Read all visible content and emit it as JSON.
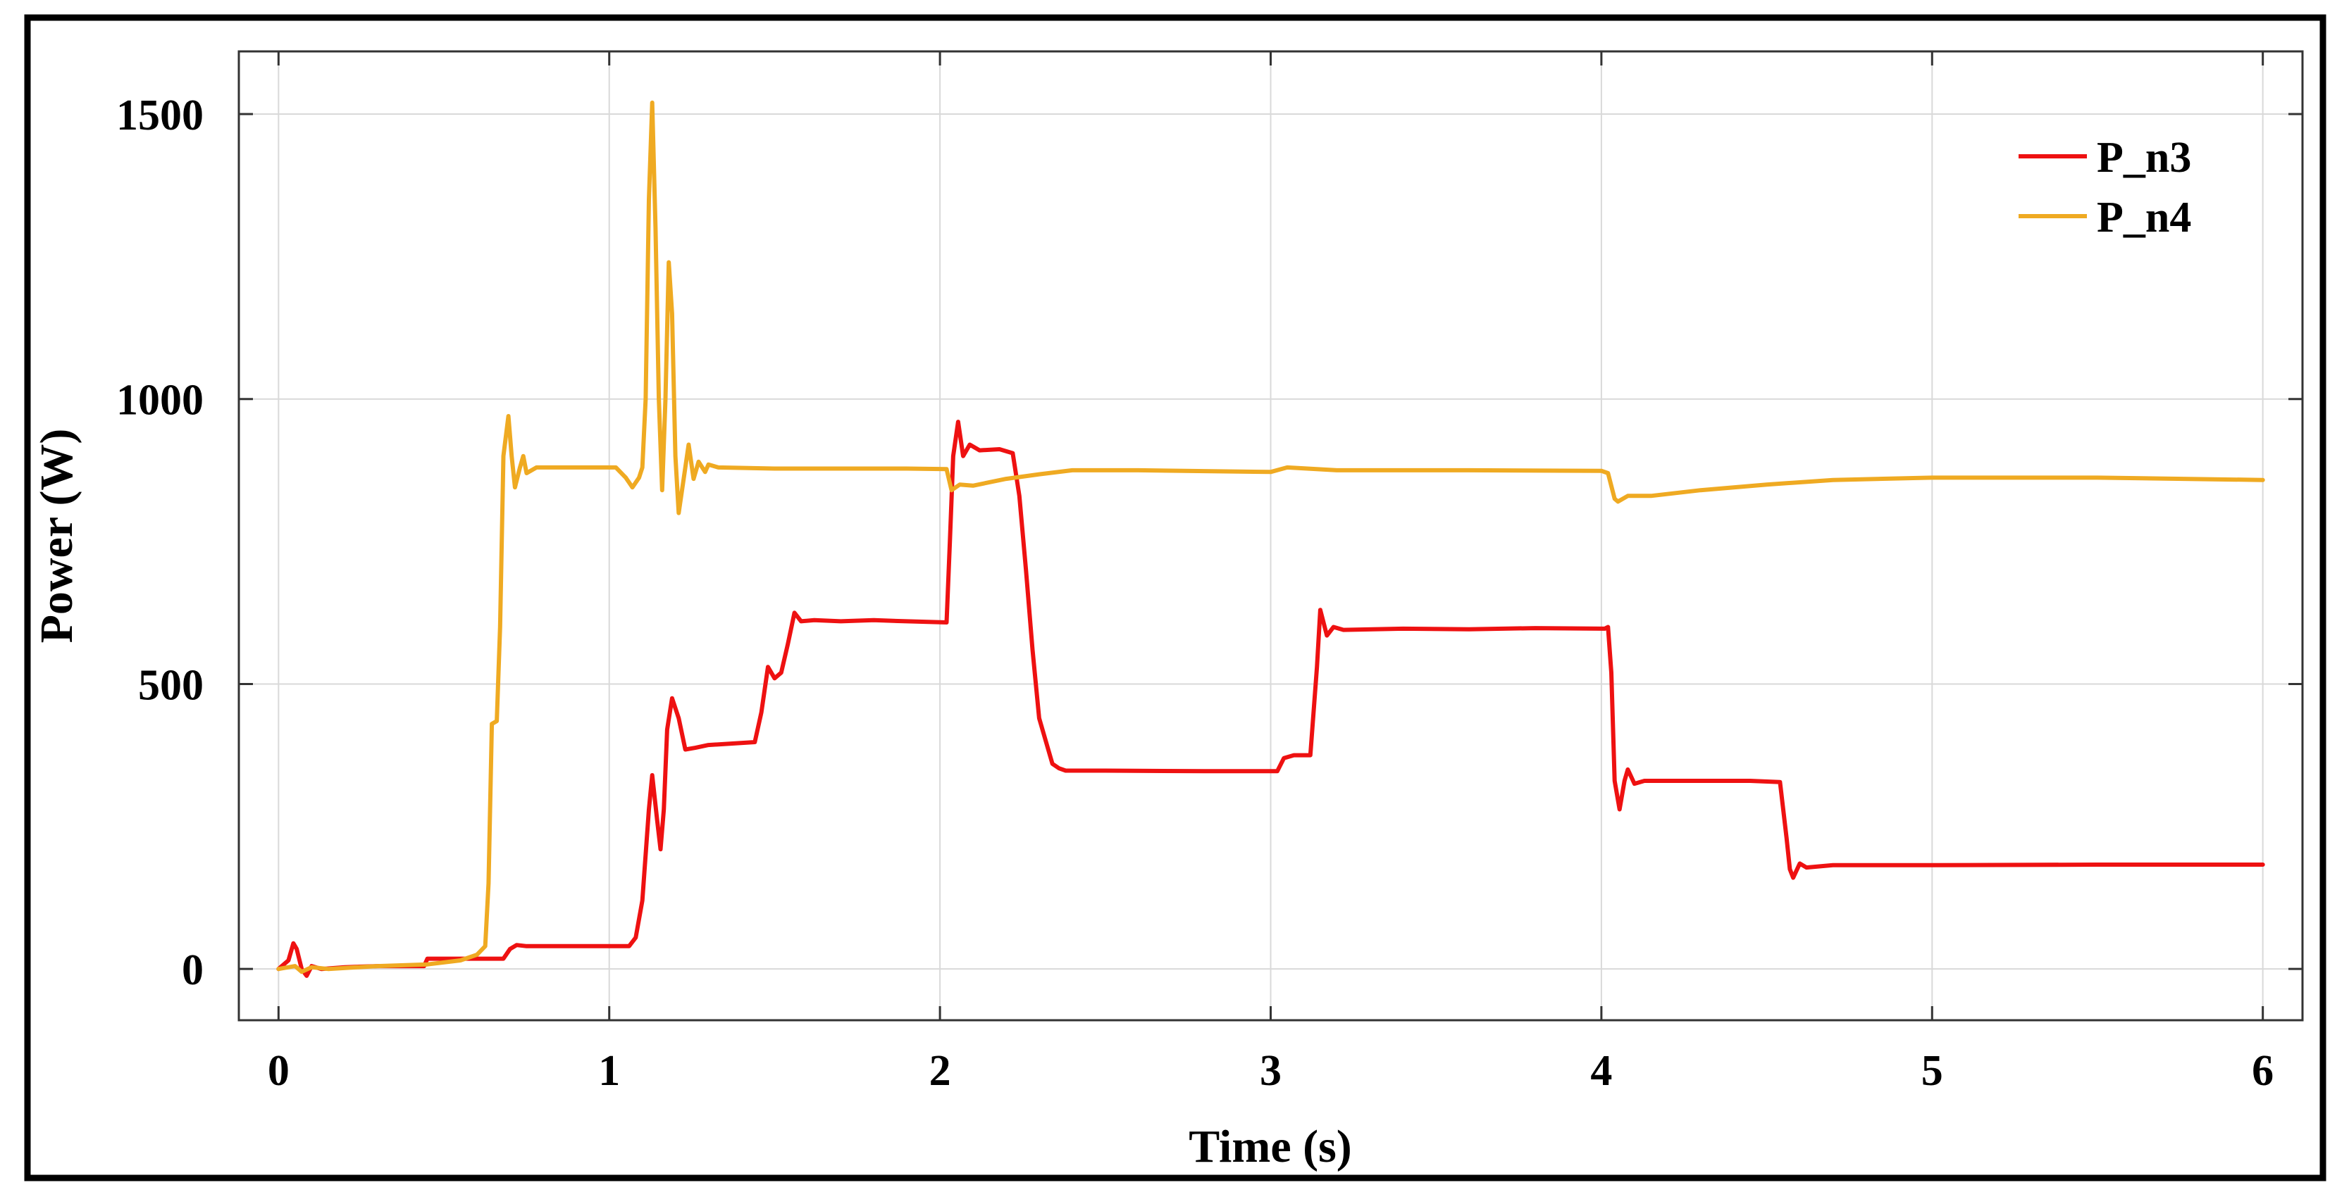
{
  "chart_data": {
    "type": "line",
    "title": "",
    "xlabel": "Time (s)",
    "ylabel": "Power (W)",
    "xlim": [
      -0.12,
      6.12
    ],
    "ylim": [
      -90,
      1610
    ],
    "xticks": [
      0,
      1,
      2,
      3,
      4,
      5,
      6
    ],
    "xtick_labels": [
      "0",
      "1",
      "2",
      "3",
      "4",
      "5",
      "6"
    ],
    "yticks": [
      0,
      500,
      1000,
      1500
    ],
    "ytick_labels": [
      "0",
      "500",
      "1000",
      "1500"
    ],
    "grid": true,
    "legend_position": "top-right",
    "series": [
      {
        "name": "P_n3",
        "color": "#ee1111",
        "points": [
          [
            0,
            0
          ],
          [
            0.03,
            15
          ],
          [
            0.045,
            45
          ],
          [
            0.055,
            35
          ],
          [
            0.07,
            0
          ],
          [
            0.085,
            -12
          ],
          [
            0.1,
            5
          ],
          [
            0.13,
            0
          ],
          [
            0.2,
            3
          ],
          [
            0.3,
            5
          ],
          [
            0.44,
            5
          ],
          [
            0.45,
            18
          ],
          [
            0.55,
            18
          ],
          [
            0.68,
            18
          ],
          [
            0.7,
            35
          ],
          [
            0.72,
            42
          ],
          [
            0.75,
            40
          ],
          [
            1.0,
            40
          ],
          [
            1.06,
            40
          ],
          [
            1.08,
            55
          ],
          [
            1.1,
            120
          ],
          [
            1.12,
            280
          ],
          [
            1.13,
            340
          ],
          [
            1.145,
            260
          ],
          [
            1.155,
            210
          ],
          [
            1.165,
            280
          ],
          [
            1.175,
            420
          ],
          [
            1.19,
            475
          ],
          [
            1.21,
            440
          ],
          [
            1.23,
            385
          ],
          [
            1.26,
            388
          ],
          [
            1.3,
            393
          ],
          [
            1.36,
            395
          ],
          [
            1.44,
            398
          ],
          [
            1.46,
            450
          ],
          [
            1.48,
            530
          ],
          [
            1.5,
            510
          ],
          [
            1.52,
            520
          ],
          [
            1.54,
            570
          ],
          [
            1.56,
            625
          ],
          [
            1.58,
            610
          ],
          [
            1.62,
            612
          ],
          [
            1.7,
            610
          ],
          [
            1.8,
            612
          ],
          [
            1.9,
            610
          ],
          [
            2.02,
            608
          ],
          [
            2.03,
            750
          ],
          [
            2.04,
            900
          ],
          [
            2.055,
            960
          ],
          [
            2.07,
            900
          ],
          [
            2.09,
            920
          ],
          [
            2.12,
            910
          ],
          [
            2.18,
            912
          ],
          [
            2.22,
            905
          ],
          [
            2.24,
            830
          ],
          [
            2.26,
            700
          ],
          [
            2.28,
            560
          ],
          [
            2.3,
            440
          ],
          [
            2.32,
            400
          ],
          [
            2.34,
            360
          ],
          [
            2.36,
            352
          ],
          [
            2.38,
            348
          ],
          [
            2.5,
            348
          ],
          [
            2.8,
            347
          ],
          [
            3.02,
            347
          ],
          [
            3.04,
            370
          ],
          [
            3.07,
            375
          ],
          [
            3.12,
            375
          ],
          [
            3.14,
            530
          ],
          [
            3.15,
            630
          ],
          [
            3.17,
            585
          ],
          [
            3.19,
            600
          ],
          [
            3.22,
            595
          ],
          [
            3.4,
            597
          ],
          [
            3.6,
            596
          ],
          [
            3.8,
            598
          ],
          [
            4.01,
            597
          ],
          [
            4.02,
            600
          ],
          [
            4.03,
            520
          ],
          [
            4.04,
            330
          ],
          [
            4.055,
            280
          ],
          [
            4.07,
            330
          ],
          [
            4.08,
            350
          ],
          [
            4.1,
            325
          ],
          [
            4.13,
            330
          ],
          [
            4.3,
            330
          ],
          [
            4.45,
            330
          ],
          [
            4.54,
            328
          ],
          [
            4.56,
            230
          ],
          [
            4.57,
            175
          ],
          [
            4.58,
            160
          ],
          [
            4.6,
            185
          ],
          [
            4.62,
            178
          ],
          [
            4.7,
            182
          ],
          [
            5.0,
            182
          ],
          [
            5.5,
            183
          ],
          [
            6.0,
            183
          ]
        ]
      },
      {
        "name": "P_n4",
        "color": "#efaa22",
        "points": [
          [
            0,
            0
          ],
          [
            0.05,
            5
          ],
          [
            0.07,
            -5
          ],
          [
            0.1,
            3
          ],
          [
            0.15,
            0
          ],
          [
            0.3,
            5
          ],
          [
            0.45,
            8
          ],
          [
            0.55,
            15
          ],
          [
            0.6,
            25
          ],
          [
            0.625,
            40
          ],
          [
            0.635,
            150
          ],
          [
            0.645,
            430
          ],
          [
            0.66,
            435
          ],
          [
            0.67,
            600
          ],
          [
            0.68,
            900
          ],
          [
            0.695,
            970
          ],
          [
            0.705,
            900
          ],
          [
            0.715,
            845
          ],
          [
            0.73,
            880
          ],
          [
            0.74,
            900
          ],
          [
            0.75,
            870
          ],
          [
            0.78,
            880
          ],
          [
            0.9,
            880
          ],
          [
            1.02,
            880
          ],
          [
            1.05,
            862
          ],
          [
            1.07,
            845
          ],
          [
            1.09,
            862
          ],
          [
            1.1,
            880
          ],
          [
            1.11,
            1000
          ],
          [
            1.12,
            1350
          ],
          [
            1.13,
            1520
          ],
          [
            1.14,
            1300
          ],
          [
            1.15,
            1000
          ],
          [
            1.16,
            840
          ],
          [
            1.17,
            1000
          ],
          [
            1.18,
            1240
          ],
          [
            1.19,
            1150
          ],
          [
            1.2,
            900
          ],
          [
            1.21,
            800
          ],
          [
            1.23,
            880
          ],
          [
            1.24,
            920
          ],
          [
            1.255,
            860
          ],
          [
            1.27,
            890
          ],
          [
            1.29,
            872
          ],
          [
            1.3,
            885
          ],
          [
            1.33,
            880
          ],
          [
            1.5,
            878
          ],
          [
            1.9,
            878
          ],
          [
            2.02,
            877
          ],
          [
            2.035,
            840
          ],
          [
            2.06,
            850
          ],
          [
            2.1,
            848
          ],
          [
            2.2,
            860
          ],
          [
            2.3,
            868
          ],
          [
            2.4,
            875
          ],
          [
            2.6,
            875
          ],
          [
            3.0,
            872
          ],
          [
            3.05,
            880
          ],
          [
            3.2,
            875
          ],
          [
            3.6,
            875
          ],
          [
            4.0,
            874
          ],
          [
            4.02,
            870
          ],
          [
            4.04,
            825
          ],
          [
            4.05,
            820
          ],
          [
            4.08,
            830
          ],
          [
            4.15,
            830
          ],
          [
            4.3,
            840
          ],
          [
            4.5,
            850
          ],
          [
            4.7,
            858
          ],
          [
            5.0,
            862
          ],
          [
            5.5,
            862
          ],
          [
            6.0,
            858
          ]
        ]
      }
    ]
  }
}
